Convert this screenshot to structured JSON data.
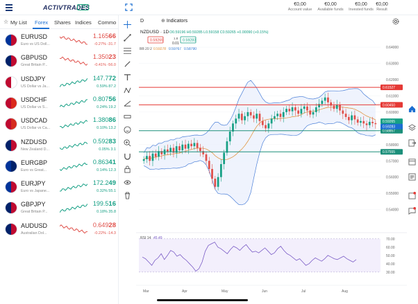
{
  "header": {
    "brand": "ACTIVTRADES",
    "live_badge": "LIVE",
    "account": [
      {
        "value": "€0,00",
        "label": "Account value"
      },
      {
        "value": "€0,00",
        "label": "Available funds"
      },
      {
        "value": "€0,00",
        "label": "Invested funds"
      },
      {
        "value": "€0,00",
        "label": "Result"
      }
    ]
  },
  "watchlist": {
    "tabs": [
      "My List",
      "Forex",
      "Shares",
      "Indices",
      "Commo"
    ],
    "active_tab": "Forex",
    "items": [
      {
        "symbol": "EURUSD",
        "desc": "Euro vs US Doll...",
        "price_main": "1.165",
        "price_big": "66",
        "change": "-0.27%",
        "change_pts": "-31.7",
        "dir": "down",
        "flags": [
          "#003399",
          "#bf0a30"
        ]
      },
      {
        "symbol": "GBPUSD",
        "desc": "Great Britain P...",
        "price_main": "1.350",
        "price_big": "23",
        "change": "-0.41%",
        "change_pts": "-56.0",
        "dir": "down",
        "flags": [
          "#012169",
          "#bf0a30"
        ]
      },
      {
        "symbol": "USDJPY",
        "desc": "US Dollar vs Ja...",
        "price_main": "147.7",
        "price_big": "72",
        "change": "0.59%",
        "change_pts": "87.2",
        "dir": "up",
        "flags": [
          "#bf0a30",
          "#ffffff"
        ]
      },
      {
        "symbol": "USDCHF",
        "desc": "US Dollar vs S...",
        "price_main": "0.807",
        "price_big": "56",
        "change": "0.24%",
        "change_pts": "19.2",
        "dir": "up",
        "flags": [
          "#bf0a30",
          "#da291c"
        ]
      },
      {
        "symbol": "USDCAD",
        "desc": "US Dollar vs Ca...",
        "price_main": "1.380",
        "price_big": "86",
        "change": "0.10%",
        "change_pts": "13.2",
        "dir": "up",
        "flags": [
          "#bf0a30",
          "#d52b1e"
        ]
      },
      {
        "symbol": "NZDUSD",
        "desc": "New Zealand D...",
        "price_main": "0.592",
        "price_big": "83",
        "change": "0.05%",
        "change_pts": "3.1",
        "dir": "up",
        "flags": [
          "#012169",
          "#bf0a30"
        ]
      },
      {
        "symbol": "EURGBP",
        "desc": "Euro vs Great...",
        "price_main": "0.863",
        "price_big": "41",
        "change": "0.14%",
        "change_pts": "12.3",
        "dir": "up",
        "flags": [
          "#003399",
          "#012169"
        ]
      },
      {
        "symbol": "EURJPY",
        "desc": "Euro vs Japane...",
        "price_main": "172.2",
        "price_big": "49",
        "change": "0.32%",
        "change_pts": "55.1",
        "dir": "up",
        "flags": [
          "#003399",
          "#bf0a30"
        ]
      },
      {
        "symbol": "GBPJPY",
        "desc": "Great Britain P...",
        "price_main": "199.5",
        "price_big": "16",
        "change": "0.18%",
        "change_pts": "35.8",
        "dir": "up",
        "flags": [
          "#012169",
          "#bf0a30"
        ]
      },
      {
        "symbol": "AUDUSD",
        "desc": "Australian Dol...",
        "price_main": "0.649",
        "price_big": "28",
        "change": "-0.22%",
        "change_pts": "-14.3",
        "dir": "down",
        "flags": [
          "#012169",
          "#bf0a30"
        ]
      }
    ]
  },
  "toolbar": {
    "interval": "D",
    "indicators_label": "Indicators"
  },
  "chart_data": {
    "type": "candlestick",
    "symbol_label": "NZDUSD · 1D",
    "ohlc_text": "O0.59196 H0.59285 L0.59158 C0.59265 +0.00090 (+0.15%)",
    "bid": "0.59265",
    "spread_top": "1.8",
    "spread_bottom": "0.01",
    "ask": "0.59283",
    "bb_label": "BB 20 2",
    "bb_values": [
      "0.59278",
      "0.59767",
      "0.58790"
    ],
    "y_ticks": [
      "0.64000",
      "0.63000",
      "0.62000",
      "0.61000",
      "0.60000",
      "0.59000",
      "0.58000",
      "0.57000",
      "0.56000",
      "0.55000",
      "0.54000"
    ],
    "ylim": [
      0.536,
      0.646
    ],
    "x_ticks": [
      "Mar",
      "Apr",
      "May",
      "Jun",
      "Jul",
      "Aug"
    ],
    "horizontal_lines": [
      {
        "value": 0.61527,
        "label": "0.61527",
        "color": "#e53935"
      },
      {
        "value": 0.6045,
        "label": "0.60450",
        "color": "#e53935"
      },
      {
        "value": 0.58857,
        "label": "0.58857",
        "color": "#1b8f7a"
      },
      {
        "value": 0.57555,
        "label": "0.57555",
        "color": "#1b8f7a"
      }
    ],
    "price_tags": [
      {
        "value": 0.59265,
        "label": "0.59265",
        "color": "#16a085"
      },
      {
        "value": 0.59283,
        "label": "0.59283",
        "color": "#1c6fd1"
      }
    ],
    "close_series": [
      0.571,
      0.573,
      0.57,
      0.5745,
      0.5725,
      0.576,
      0.574,
      0.577,
      0.5755,
      0.578,
      0.575,
      0.579,
      0.5765,
      0.58,
      0.5775,
      0.5805,
      0.579,
      0.581,
      0.578,
      0.576,
      0.574,
      0.57,
      0.565,
      0.559,
      0.554,
      0.56,
      0.568,
      0.575,
      0.582,
      0.588,
      0.593,
      0.596,
      0.599,
      0.595,
      0.5975,
      0.6,
      0.598,
      0.596,
      0.599,
      0.5945,
      0.592,
      0.59,
      0.593,
      0.596,
      0.5975,
      0.599,
      0.597,
      0.6,
      0.602,
      0.6005,
      0.603,
      0.601,
      0.599,
      0.602,
      0.6035,
      0.601,
      0.5985,
      0.6,
      0.603,
      0.605,
      0.607,
      0.609,
      0.606,
      0.604,
      0.602,
      0.6045,
      0.601,
      0.599,
      0.597,
      0.595,
      0.598,
      0.5955,
      0.5935,
      0.5945,
      0.593,
      0.592,
      0.594,
      0.5932,
      0.5926
    ],
    "rsi": {
      "label": "RSI 14",
      "value": "45.49",
      "y_ticks": [
        "70.00",
        "60.00",
        "50.00",
        "40.00",
        "30.00"
      ],
      "ylim": [
        24,
        74
      ],
      "series": [
        48,
        46,
        42,
        38,
        44,
        47,
        52,
        45,
        50,
        56,
        54,
        49,
        51,
        47,
        44,
        40,
        36,
        31,
        34,
        42,
        55,
        62,
        64,
        66,
        60,
        58,
        55,
        52,
        57,
        61,
        59,
        56,
        60,
        63,
        58,
        54,
        55,
        53,
        56,
        59,
        55,
        51,
        53,
        58,
        61,
        56,
        52,
        50,
        47,
        44,
        46,
        42,
        38,
        40,
        44,
        47,
        45,
        43,
        46,
        50,
        48,
        46,
        45,
        47,
        49,
        46,
        44,
        42,
        45
      ]
    }
  }
}
